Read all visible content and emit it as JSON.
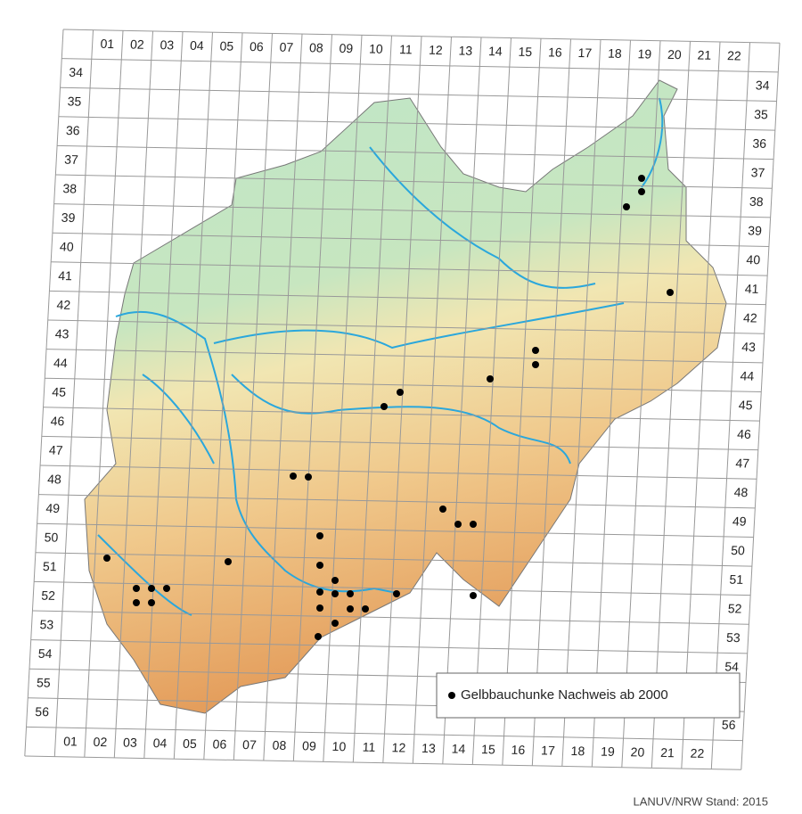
{
  "grid": {
    "columns_top": [
      "01",
      "02",
      "03",
      "04",
      "05",
      "06",
      "07",
      "08",
      "09",
      "10",
      "11",
      "12",
      "13",
      "14",
      "15",
      "16",
      "17",
      "18",
      "19",
      "20",
      "21",
      "22"
    ],
    "rows_left": [
      "34",
      "35",
      "36",
      "37",
      "38",
      "39",
      "40",
      "41",
      "42",
      "43",
      "44",
      "45",
      "46",
      "47",
      "48",
      "49",
      "50",
      "51",
      "52",
      "53",
      "54",
      "55",
      "56"
    ],
    "rows_right": [
      "34",
      "35",
      "36",
      "37",
      "38",
      "39",
      "40",
      "41",
      "42",
      "43",
      "44",
      "45",
      "46",
      "47",
      "48",
      "49",
      "50",
      "51",
      "52",
      "53",
      "54",
      "55",
      "56"
    ],
    "columns_bottom": [
      "01",
      "02",
      "03",
      "04",
      "05",
      "06",
      "07",
      "08",
      "09",
      "10",
      "11",
      "12",
      "13",
      "14",
      "15",
      "16",
      "17",
      "18",
      "19",
      "20",
      "21",
      "22"
    ]
  },
  "legend": {
    "label": "Gelbbauchunke Nachweis ab 2000"
  },
  "source": "LANUV/NRW Stand: 2015"
}
